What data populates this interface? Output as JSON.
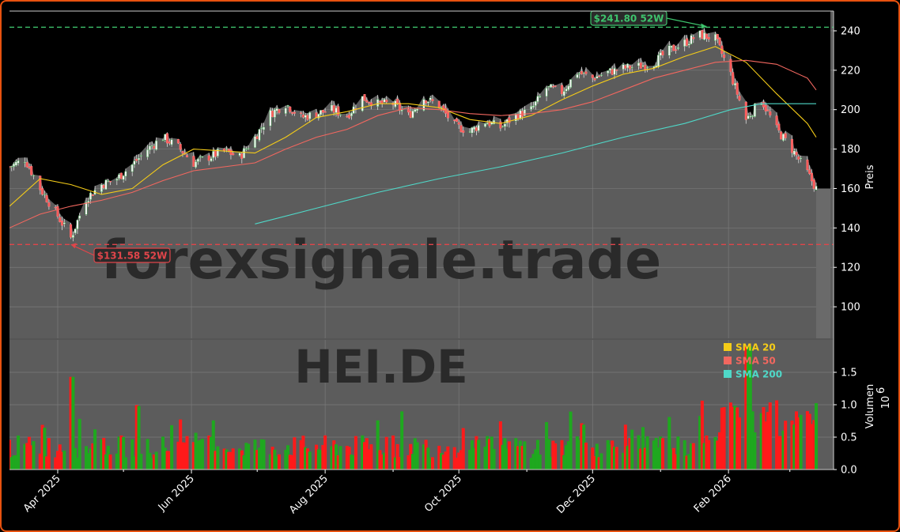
{
  "chart_data": {
    "type": "candlestick",
    "watermark_site": "forexsignale.trade",
    "watermark_ticker": "HEI.DE",
    "price_panel": {
      "ylabel": "Preis",
      "ylim": [
        84,
        250
      ],
      "yticks": [
        100,
        120,
        140,
        160,
        180,
        200,
        220,
        240
      ],
      "close_path": [
        [
          "2025-03-10",
          171
        ],
        [
          "2025-03-17",
          175
        ],
        [
          "2025-03-24",
          160
        ],
        [
          "2025-03-31",
          148
        ],
        [
          "2025-04-07",
          135
        ],
        [
          "2025-04-14",
          155
        ],
        [
          "2025-04-21",
          162
        ],
        [
          "2025-04-28",
          165
        ],
        [
          "2025-05-05",
          172
        ],
        [
          "2025-05-12",
          180
        ],
        [
          "2025-05-19",
          186
        ],
        [
          "2025-05-26",
          181
        ],
        [
          "2025-06-02",
          173
        ],
        [
          "2025-06-09",
          176
        ],
        [
          "2025-06-16",
          179
        ],
        [
          "2025-06-23",
          176
        ],
        [
          "2025-06-30",
          186
        ],
        [
          "2025-07-07",
          198
        ],
        [
          "2025-07-14",
          203
        ],
        [
          "2025-07-21",
          196
        ],
        [
          "2025-07-28",
          198
        ],
        [
          "2025-08-04",
          200
        ],
        [
          "2025-08-11",
          197
        ],
        [
          "2025-08-18",
          206
        ],
        [
          "2025-08-25",
          203
        ],
        [
          "2025-09-01",
          203
        ],
        [
          "2025-09-08",
          197
        ],
        [
          "2025-09-15",
          206
        ],
        [
          "2025-09-22",
          202
        ],
        [
          "2025-09-29",
          192
        ],
        [
          "2025-10-06",
          189
        ],
        [
          "2025-10-13",
          194
        ],
        [
          "2025-10-20",
          191
        ],
        [
          "2025-10-27",
          197
        ],
        [
          "2025-11-03",
          200
        ],
        [
          "2025-11-10",
          211
        ],
        [
          "2025-11-17",
          209
        ],
        [
          "2025-11-24",
          219
        ],
        [
          "2025-12-01",
          216
        ],
        [
          "2025-12-08",
          219
        ],
        [
          "2025-12-15",
          221
        ],
        [
          "2025-12-22",
          222
        ],
        [
          "2025-12-29",
          224
        ],
        [
          "2026-01-05",
          230
        ],
        [
          "2026-01-12",
          234
        ],
        [
          "2026-01-19",
          238
        ],
        [
          "2026-01-26",
          236
        ],
        [
          "2026-02-02",
          218
        ],
        [
          "2026-02-09",
          195
        ],
        [
          "2026-02-16",
          205
        ],
        [
          "2026-02-23",
          190
        ],
        [
          "2026-03-02",
          180
        ],
        [
          "2026-03-09",
          168
        ],
        [
          "2026-03-13",
          160
        ]
      ],
      "last_close": 160,
      "high_52w": 241.8,
      "low_52w": 131.58,
      "annotations": [
        {
          "text": "$241.80 52W",
          "color": "#3ec46d"
        },
        {
          "text": "$131.58 52W",
          "color": "#e0454a"
        }
      ],
      "sma_series": [
        {
          "name": "SMA 20",
          "color": "#f5cc18",
          "points": [
            [
              "2025-03-10",
              151
            ],
            [
              "2025-03-24",
              165
            ],
            [
              "2025-04-07",
              162
            ],
            [
              "2025-04-21",
              157
            ],
            [
              "2025-05-05",
              160
            ],
            [
              "2025-05-19",
              172
            ],
            [
              "2025-06-02",
              180
            ],
            [
              "2025-06-16",
              179
            ],
            [
              "2025-06-30",
              178
            ],
            [
              "2025-07-14",
              186
            ],
            [
              "2025-07-28",
              196
            ],
            [
              "2025-08-11",
              199
            ],
            [
              "2025-08-25",
              203
            ],
            [
              "2025-09-08",
              203
            ],
            [
              "2025-09-22",
              201
            ],
            [
              "2025-10-06",
              195
            ],
            [
              "2025-10-20",
              193
            ],
            [
              "2025-11-03",
              197
            ],
            [
              "2025-11-17",
              205
            ],
            [
              "2025-12-01",
              212
            ],
            [
              "2025-12-15",
              218
            ],
            [
              "2025-12-29",
              221
            ],
            [
              "2026-01-12",
              227
            ],
            [
              "2026-01-26",
              232
            ],
            [
              "2026-02-09",
              224
            ],
            [
              "2026-02-23",
              208
            ],
            [
              "2026-03-09",
              193
            ],
            [
              "2026-03-13",
              186
            ]
          ]
        },
        {
          "name": "SMA 50",
          "color": "#f2675f",
          "points": [
            [
              "2025-03-10",
              140
            ],
            [
              "2025-03-24",
              147
            ],
            [
              "2025-04-07",
              151
            ],
            [
              "2025-04-21",
              154
            ],
            [
              "2025-05-05",
              158
            ],
            [
              "2025-05-19",
              164
            ],
            [
              "2025-06-02",
              169
            ],
            [
              "2025-06-16",
              171
            ],
            [
              "2025-06-30",
              173
            ],
            [
              "2025-07-14",
              180
            ],
            [
              "2025-07-28",
              186
            ],
            [
              "2025-08-11",
              190
            ],
            [
              "2025-08-25",
              197
            ],
            [
              "2025-09-08",
              201
            ],
            [
              "2025-09-22",
              200
            ],
            [
              "2025-10-06",
              198
            ],
            [
              "2025-10-20",
              197
            ],
            [
              "2025-11-03",
              198
            ],
            [
              "2025-11-17",
              200
            ],
            [
              "2025-12-01",
              204
            ],
            [
              "2025-12-15",
              210
            ],
            [
              "2025-12-29",
              216
            ],
            [
              "2026-01-12",
              220
            ],
            [
              "2026-01-26",
              224
            ],
            [
              "2026-02-09",
              225
            ],
            [
              "2026-02-23",
              223
            ],
            [
              "2026-03-09",
              216
            ],
            [
              "2026-03-13",
              210
            ]
          ]
        },
        {
          "name": "SMA 200",
          "color": "#4fd8c8",
          "points": [
            [
              "2025-06-30",
              142
            ],
            [
              "2025-07-28",
              150
            ],
            [
              "2025-08-25",
              158
            ],
            [
              "2025-09-22",
              165
            ],
            [
              "2025-10-20",
              171
            ],
            [
              "2025-11-17",
              178
            ],
            [
              "2025-12-15",
              186
            ],
            [
              "2026-01-12",
              193
            ],
            [
              "2026-02-02",
              200
            ],
            [
              "2026-02-16",
              203
            ],
            [
              "2026-03-13",
              203
            ]
          ]
        }
      ]
    },
    "volume_panel": {
      "ylabel": "Volumen",
      "exponent_label": "10",
      "exponent_power": "6",
      "ylim": [
        0,
        2.0
      ],
      "yticks": [
        "0.0",
        "0.5",
        "1.0",
        "1.5"
      ]
    },
    "x_axis": {
      "start": "2025-03-10",
      "end": "2026-03-13",
      "ticks": [
        {
          "label": "Apr 2025",
          "date": "2025-04-01"
        },
        {
          "label": "Jun 2025",
          "date": "2025-06-01"
        },
        {
          "label": "Aug 2025",
          "date": "2025-08-01"
        },
        {
          "label": "Oct 2025",
          "date": "2025-10-01"
        },
        {
          "label": "Dec 2025",
          "date": "2025-12-01"
        },
        {
          "label": "Feb 2026",
          "date": "2026-02-01"
        }
      ]
    },
    "legend": {
      "position": "lower-right of price panel",
      "entries": [
        "SMA 20",
        "SMA 50",
        "SMA 200"
      ]
    },
    "colors": {
      "up": "#1fa81f",
      "down": "#ff1a1a",
      "panel_bg": "#5c5c5c",
      "grid": "#7a7a7a",
      "area": "#888888"
    }
  }
}
